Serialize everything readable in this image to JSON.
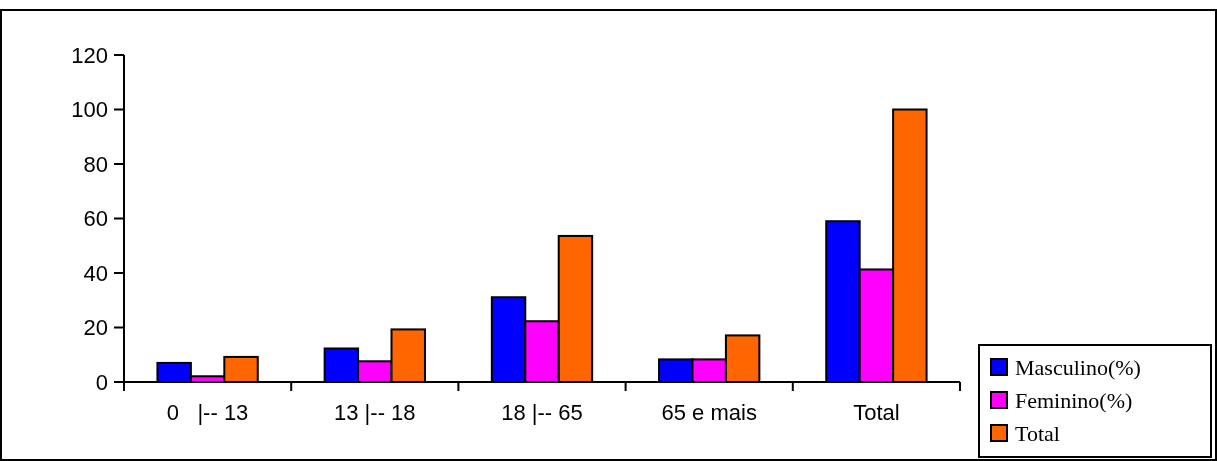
{
  "chart_data": {
    "type": "bar",
    "categories": [
      "0   |-- 13",
      "13 |-- 18",
      "18 |-- 65",
      "65 e mais",
      "Total"
    ],
    "series": [
      {
        "name": "Masculino(%)",
        "color": "#0000ff",
        "values": [
          7.0,
          12.3,
          31.1,
          8.3,
          59.0
        ]
      },
      {
        "name": "Feminino(%)",
        "color": "#ff00ff",
        "values": [
          2.1,
          7.6,
          22.3,
          8.3,
          41.3
        ]
      },
      {
        "name": "Total",
        "color": "#ff6600",
        "values": [
          9.2,
          19.3,
          53.6,
          17.1,
          100
        ]
      }
    ],
    "ylim": [
      0,
      120
    ],
    "yticks": [
      0,
      20,
      40,
      60,
      80,
      100,
      120
    ],
    "grid": false,
    "legend": "bottom right"
  }
}
